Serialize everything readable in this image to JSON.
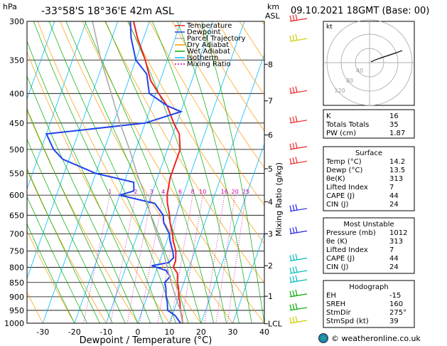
{
  "header": {
    "unit_hpa": "hPa",
    "location": "-33°58'S  18°36'E  42m  ASL",
    "unit_km": "km",
    "unit_asl": "ASL",
    "datetime": "09.10.2021  18GMT  (Base: 00)"
  },
  "footer": {
    "credit": "© weatheronline.co.uk"
  },
  "colors": {
    "temperature": "#ee2222",
    "dewpoint": "#2244ee",
    "parcel": "#aaaaaa",
    "dry_adiabat": "#ff9900",
    "wet_adiabat": "#00aa00",
    "isotherm": "#00bbff",
    "mixing_ratio": "#cc00aa"
  },
  "chart_data": {
    "type": "line",
    "xlabel": "Dewpoint / Temperature (°C)",
    "ylabel": "Mixing Ratio (g/kg)",
    "x_ticks": [
      "-30",
      "-20",
      "-10",
      "0",
      "10",
      "20",
      "30",
      "40"
    ],
    "x_range": [
      -35,
      40
    ],
    "pressure_levels": [
      300,
      350,
      400,
      450,
      500,
      550,
      600,
      650,
      700,
      750,
      800,
      850,
      900,
      950,
      1000
    ],
    "pressure_range": [
      300,
      1000
    ],
    "legend": [
      "Temperature",
      "Dewpoint",
      "Parcel Trajectory",
      "Dry Adiabat",
      "Wet Adiabat",
      "Isotherm",
      "Mixing Ratio"
    ],
    "km_axis": [
      {
        "label": "8",
        "p": 356
      },
      {
        "label": "7",
        "p": 412
      },
      {
        "label": "6",
        "p": 472
      },
      {
        "label": "5",
        "p": 540
      },
      {
        "label": "4",
        "p": 616
      },
      {
        "label": "3",
        "p": 700
      },
      {
        "label": "2",
        "p": 795
      },
      {
        "label": "1",
        "p": 898
      },
      {
        "label": "LCL",
        "p": 1002
      }
    ],
    "mixing_ratio_labels": [
      "1",
      "2",
      "3",
      "4",
      "6",
      "8",
      "10",
      "16",
      "20",
      "25"
    ],
    "mixing_ratio_values": [
      1,
      2,
      3,
      4,
      6,
      8,
      10,
      16,
      20,
      25
    ],
    "series": [
      {
        "name": "Temperature",
        "points": [
          [
            14.2,
            1000
          ],
          [
            13,
            970
          ],
          [
            12,
            950
          ],
          [
            11,
            920
          ],
          [
            10,
            900
          ],
          [
            9,
            870
          ],
          [
            8,
            850
          ],
          [
            7,
            820
          ],
          [
            5,
            800
          ],
          [
            5,
            780
          ],
          [
            4,
            750
          ],
          [
            2,
            720
          ],
          [
            1,
            700
          ],
          [
            -1,
            670
          ],
          [
            -2,
            650
          ],
          [
            -4,
            620
          ],
          [
            -5,
            600
          ],
          [
            -6,
            560
          ],
          [
            -6,
            530
          ],
          [
            -6,
            500
          ],
          [
            -8,
            470
          ],
          [
            -11,
            450
          ],
          [
            -15,
            420
          ],
          [
            -19,
            400
          ],
          [
            -23,
            380
          ],
          [
            -27,
            350
          ],
          [
            -32,
            320
          ],
          [
            -35,
            300
          ]
        ]
      },
      {
        "name": "Dewpoint",
        "points": [
          [
            13.5,
            1000
          ],
          [
            11,
            970
          ],
          [
            8,
            950
          ],
          [
            7,
            920
          ],
          [
            6,
            900
          ],
          [
            5,
            870
          ],
          [
            4,
            850
          ],
          [
            5,
            830
          ],
          [
            3,
            810
          ],
          [
            -2,
            795
          ],
          [
            3,
            785
          ],
          [
            4,
            770
          ],
          [
            3,
            750
          ],
          [
            1,
            720
          ],
          [
            0,
            700
          ],
          [
            -3,
            670
          ],
          [
            -4,
            650
          ],
          [
            -8,
            620
          ],
          [
            -14,
            610
          ],
          [
            -20,
            600
          ],
          [
            -16,
            590
          ],
          [
            -17,
            570
          ],
          [
            -30,
            550
          ],
          [
            -42,
            520
          ],
          [
            -46,
            500
          ],
          [
            -50,
            470
          ],
          [
            -20,
            450
          ],
          [
            -10,
            430
          ],
          [
            -15,
            420
          ],
          [
            -22,
            400
          ],
          [
            -25,
            370
          ],
          [
            -30,
            350
          ],
          [
            -34,
            320
          ],
          [
            -36,
            300
          ]
        ]
      },
      {
        "name": "Parcel Trajectory",
        "points": [
          [
            14.2,
            1000
          ],
          [
            12,
            950
          ],
          [
            9,
            900
          ],
          [
            6,
            850
          ],
          [
            3,
            800
          ],
          [
            0,
            750
          ],
          [
            -4,
            700
          ],
          [
            -8,
            650
          ],
          [
            -12,
            600
          ],
          [
            -17,
            550
          ],
          [
            -22,
            500
          ],
          [
            -28,
            450
          ],
          [
            -34,
            400
          ],
          [
            -41,
            350
          ],
          [
            -48,
            300
          ]
        ]
      }
    ]
  },
  "indices": {
    "rows": [
      {
        "label": "K",
        "value": "16"
      },
      {
        "label": "Totals Totals",
        "value": "35"
      },
      {
        "label": "PW (cm)",
        "value": "1.87"
      }
    ],
    "surface": {
      "title": "Surface",
      "rows": [
        {
          "label": "Temp (°C)",
          "value": "14.2"
        },
        {
          "label": "Dewp (°C)",
          "value": "13.5"
        },
        {
          "label": "θe(K)",
          "value": "313"
        },
        {
          "label": "Lifted Index",
          "value": "7"
        },
        {
          "label": "CAPE (J)",
          "value": "44"
        },
        {
          "label": "CIN (J)",
          "value": "24"
        }
      ]
    },
    "most_unstable": {
      "title": "Most Unstable",
      "rows": [
        {
          "label": "Pressure (mb)",
          "value": "1012"
        },
        {
          "label": "θe (K)",
          "value": "313"
        },
        {
          "label": "Lifted Index",
          "value": "7"
        },
        {
          "label": "CAPE (J)",
          "value": "44"
        },
        {
          "label": "CIN (J)",
          "value": "24"
        }
      ]
    },
    "hodograph": {
      "title": "Hodograph",
      "rows": [
        {
          "label": "EH",
          "value": "-15"
        },
        {
          "label": "SREH",
          "value": "160"
        },
        {
          "label": "StmDir",
          "value": "275°"
        },
        {
          "label": "StmSpd (kt)",
          "value": "39"
        }
      ]
    }
  },
  "hodograph_chart": {
    "kt_label": "kt",
    "ring_labels": [
      "40",
      "80",
      "120"
    ],
    "trace": [
      [
        2,
        1
      ],
      [
        6,
        3
      ],
      [
        14,
        6
      ],
      [
        26,
        10
      ],
      [
        38,
        14
      ],
      [
        46,
        17
      ]
    ]
  }
}
